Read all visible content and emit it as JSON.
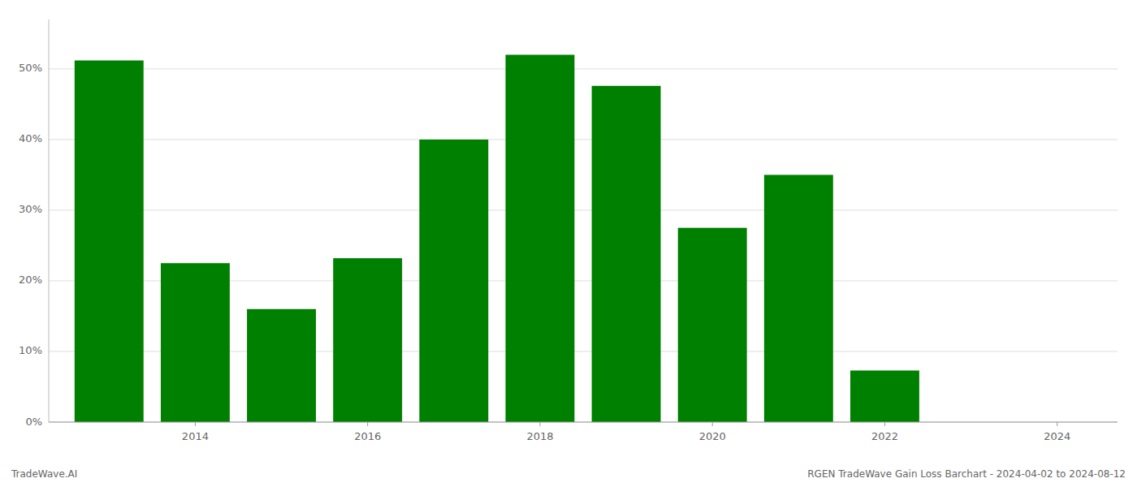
{
  "chart_data": {
    "type": "bar",
    "x": [
      2013,
      2014,
      2015,
      2016,
      2017,
      2018,
      2019,
      2020,
      2021,
      2022,
      2023
    ],
    "values": [
      51.2,
      22.5,
      16.0,
      23.2,
      40.0,
      52.0,
      47.6,
      27.5,
      35.0,
      7.3,
      0.0
    ],
    "color": "#008000",
    "xlim": [
      2012.3,
      2024.7
    ],
    "ylim": [
      0,
      57
    ],
    "xticks": [
      2014,
      2016,
      2018,
      2020,
      2022,
      2024
    ],
    "yticks": [
      {
        "value": 0,
        "label": "0%"
      },
      {
        "value": 10,
        "label": "10%"
      },
      {
        "value": 20,
        "label": "20%"
      },
      {
        "value": 30,
        "label": "30%"
      },
      {
        "value": 40,
        "label": "40%"
      },
      {
        "value": 50,
        "label": "50%"
      }
    ],
    "grid": true,
    "annotations": [
      "TradeWave.AI",
      "RGEN TradeWave Gain Loss Barchart - 2024-04-02 to 2024-08-12"
    ]
  }
}
